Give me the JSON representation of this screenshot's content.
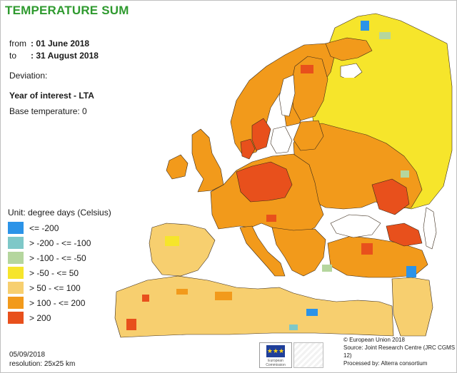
{
  "title": "TEMPERATURE SUM",
  "period": {
    "from_label": "from",
    "from_value": ": 01 June 2018",
    "to_label": "to",
    "to_value": ": 31 August 2018"
  },
  "deviation_label": "Deviation:",
  "comparison": "Year of interest - LTA",
  "base_temperature": "Base temperature: 0",
  "legend": {
    "title": "Unit: degree days (Celsius)",
    "items": [
      {
        "label": "<= -200",
        "color": "#2b93e8"
      },
      {
        "label": "> -200 - <= -100",
        "color": "#7ec8c8"
      },
      {
        "label": "> -100 - <= -50",
        "color": "#b5d69e"
      },
      {
        "label": "> -50 - <= 50",
        "color": "#f6e52b"
      },
      {
        "label": "> 50 - <= 100",
        "color": "#f7cf6f"
      },
      {
        "label": "> 100 - <= 200",
        "color": "#f29a1b"
      },
      {
        "label": "> 200",
        "color": "#e8501c"
      }
    ]
  },
  "footer_left": {
    "date": "05/09/2018",
    "resolution": "resolution:  25x25 km"
  },
  "footer_right": {
    "copyright": "© European Union 2018",
    "source": "Source: Joint Research Centre (JRC CGMS 12)",
    "processed": "Processed by: Alterra consortium"
  },
  "logo": {
    "caption": "European Commission"
  },
  "colors": {
    "title": "#2f9a2f",
    "sea": "#ffffff",
    "border": "#3a2a1a"
  }
}
